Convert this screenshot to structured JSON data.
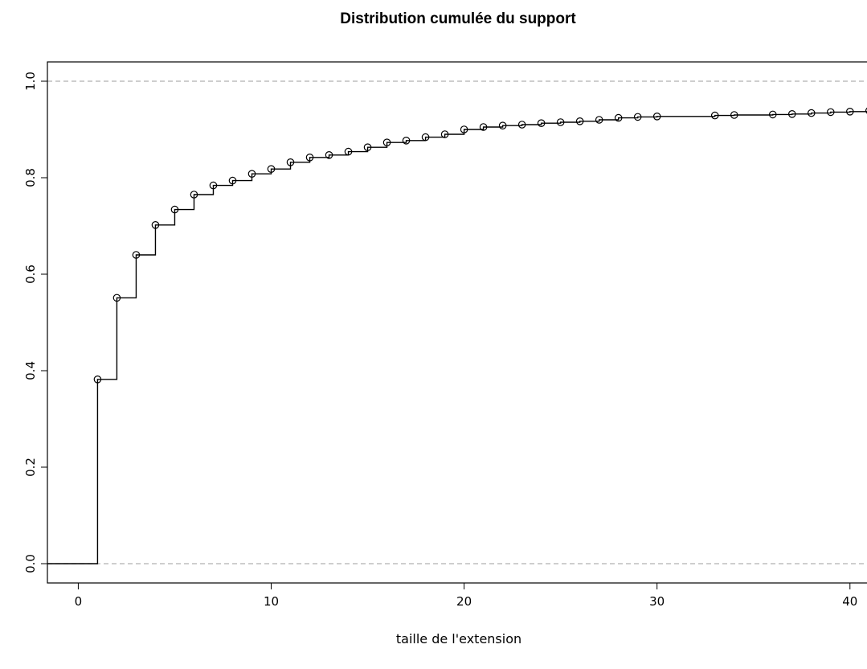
{
  "chart_data": {
    "type": "line",
    "subtype": "empirical-cumulative-distribution-step",
    "title": "Distribution cumulée du support",
    "xlabel": "taille de l'extension",
    "ylabel": "",
    "xlim": [
      -1.6,
      41.3
    ],
    "ylim": [
      -0.04,
      1.04
    ],
    "x_ticks": [
      0,
      10,
      20,
      30,
      40
    ],
    "x_tick_labels": [
      "0",
      "10",
      "20",
      "30",
      "40"
    ],
    "y_ticks": [
      0.0,
      0.2,
      0.4,
      0.6,
      0.8,
      1.0
    ],
    "y_tick_labels": [
      "0.0",
      "0.2",
      "0.4",
      "0.6",
      "0.8",
      "1.0"
    ],
    "reference_lines_y": [
      0,
      1
    ],
    "grid": false,
    "legend": "none",
    "colors": {
      "line": "#000000",
      "reference": "#b0b0b0"
    },
    "series": [
      {
        "x": [
          1,
          2,
          3,
          4,
          5,
          6,
          7,
          8,
          9,
          10,
          11,
          12,
          13,
          14,
          15,
          16,
          17,
          18,
          19,
          20,
          21,
          22,
          23,
          24,
          25,
          26,
          27,
          28,
          29,
          30,
          33,
          34,
          36,
          37,
          38,
          39,
          40,
          41
        ],
        "y": [
          0.382,
          0.551,
          0.64,
          0.702,
          0.734,
          0.765,
          0.784,
          0.794,
          0.808,
          0.818,
          0.832,
          0.842,
          0.847,
          0.854,
          0.863,
          0.873,
          0.877,
          0.884,
          0.89,
          0.9,
          0.905,
          0.908,
          0.91,
          0.913,
          0.915,
          0.917,
          0.92,
          0.924,
          0.926,
          0.927,
          0.929,
          0.93,
          0.931,
          0.932,
          0.934,
          0.936,
          0.937,
          0.939
        ]
      }
    ]
  }
}
